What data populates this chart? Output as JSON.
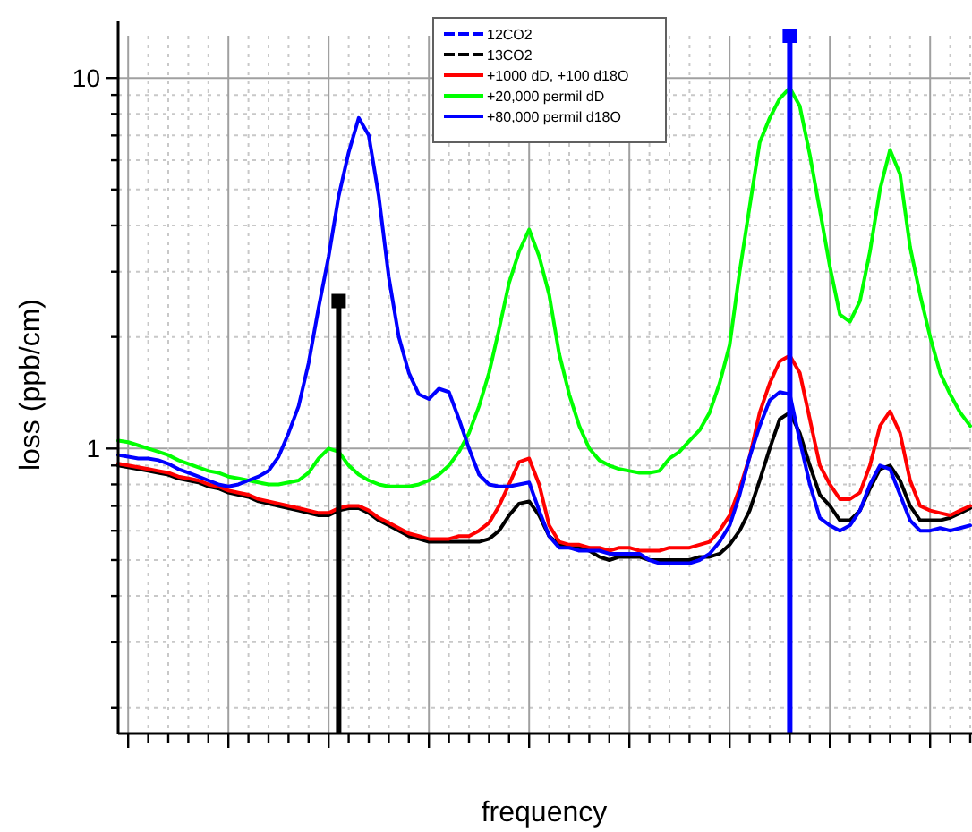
{
  "chart_data": {
    "type": "line",
    "xlabel": "frequency",
    "ylabel": "loss (ppb/cm)",
    "log": "y",
    "grid": true,
    "legend": "top",
    "marker": "none",
    "line_style": "solid",
    "categories": [
      null,
      null,
      null,
      null,
      null,
      null,
      null,
      null,
      null,
      null,
      null,
      null,
      null,
      null,
      null,
      null,
      null,
      null,
      null,
      null,
      null,
      null,
      null,
      null,
      null,
      null,
      null,
      null,
      null,
      null,
      null,
      null,
      null,
      null,
      null,
      null,
      null,
      null,
      null,
      null,
      null,
      null,
      null,
      null,
      null,
      null,
      null,
      null,
      null,
      null,
      null,
      null,
      null,
      null,
      null,
      null,
      null,
      null,
      null,
      null,
      null,
      null,
      null,
      null,
      null,
      null,
      null,
      null,
      null,
      null,
      null,
      null,
      null,
      null,
      null,
      null,
      null,
      null,
      null,
      null,
      null,
      null,
      null,
      null,
      null,
      null
    ],
    "ylim": [
      0.17,
      13
    ],
    "yticks": [
      {
        "value": 0.2,
        "label": null
      },
      {
        "value": 0.3,
        "label": null
      },
      {
        "value": 0.4,
        "label": null
      },
      {
        "value": 0.5,
        "label": null
      },
      {
        "value": 0.6,
        "label": null
      },
      {
        "value": 0.7,
        "label": null
      },
      {
        "value": 0.8,
        "label": null
      },
      {
        "value": 0.9,
        "label": null
      },
      1,
      {
        "value": 2,
        "label": null
      },
      {
        "value": 3,
        "label": null
      },
      {
        "value": 4,
        "label": null
      },
      {
        "value": 5,
        "label": null
      },
      {
        "value": 6,
        "label": null
      },
      {
        "value": 7,
        "label": null
      },
      {
        "value": 8,
        "label": null
      },
      {
        "value": 9,
        "label": null
      },
      10
    ],
    "series": [
      {
        "name": "12CO2",
        "type": "lollipop",
        "color": "#0000ff",
        "marker": "square",
        "values": [
          null,
          null,
          null,
          null,
          null,
          null,
          null,
          null,
          null,
          null,
          null,
          null,
          null,
          null,
          null,
          null,
          null,
          null,
          null,
          null,
          null,
          null,
          null,
          null,
          null,
          null,
          null,
          null,
          null,
          null,
          null,
          null,
          null,
          null,
          null,
          null,
          null,
          null,
          null,
          null,
          null,
          null,
          null,
          null,
          null,
          null,
          null,
          null,
          null,
          null,
          null,
          null,
          null,
          null,
          null,
          null,
          null,
          null,
          null,
          null,
          null,
          null,
          null,
          null,
          null,
          null,
          null,
          13,
          null,
          null,
          null,
          null,
          null,
          null,
          null,
          null,
          null,
          null,
          null,
          null,
          null,
          null,
          null,
          null,
          null,
          null
        ]
      },
      {
        "name": "13CO2",
        "type": "lollipop",
        "color": "#000000",
        "marker": "square",
        "values": [
          null,
          null,
          null,
          null,
          null,
          null,
          null,
          null,
          null,
          null,
          null,
          null,
          null,
          null,
          null,
          null,
          null,
          null,
          null,
          null,
          null,
          null,
          2.5,
          null,
          null,
          null,
          null,
          null,
          null,
          null,
          null,
          null,
          null,
          null,
          null,
          null,
          null,
          null,
          null,
          null,
          null,
          null,
          null,
          null,
          null,
          null,
          null,
          null,
          null,
          null,
          null,
          null,
          null,
          null,
          null,
          null,
          null,
          null,
          null,
          null,
          null,
          null,
          null,
          null,
          null,
          null,
          null,
          null,
          null,
          null,
          null,
          null,
          null,
          null,
          null,
          null,
          null,
          null,
          null,
          null,
          null,
          null,
          null,
          null,
          null,
          null
        ]
      },
      {
        "color": "#000000",
        "values": [
          0.9,
          0.89,
          0.88,
          0.87,
          0.86,
          0.85,
          0.83,
          0.82,
          0.81,
          0.79,
          0.78,
          0.76,
          0.75,
          0.74,
          0.72,
          0.71,
          0.7,
          0.69,
          0.68,
          0.67,
          0.66,
          0.66,
          0.68,
          0.69,
          0.69,
          0.67,
          0.64,
          0.62,
          0.6,
          0.58,
          0.57,
          0.56,
          0.56,
          0.56,
          0.56,
          0.56,
          0.56,
          0.57,
          0.6,
          0.66,
          0.71,
          0.72,
          0.66,
          0.58,
          0.55,
          0.54,
          0.54,
          0.53,
          0.51,
          0.5,
          0.51,
          0.51,
          0.51,
          0.5,
          0.5,
          0.5,
          0.5,
          0.5,
          0.51,
          0.51,
          0.52,
          0.55,
          0.6,
          0.68,
          0.82,
          1.0,
          1.2,
          1.25,
          1.1,
          0.9,
          0.75,
          0.7,
          0.64,
          0.64,
          0.68,
          0.78,
          0.88,
          0.9,
          0.82,
          0.7,
          0.64,
          0.64,
          0.64,
          0.65,
          0.67,
          0.69
        ]
      },
      {
        "name": "+1000 dD, +100 d18O",
        "color": "#ff0000",
        "values": [
          0.91,
          0.9,
          0.89,
          0.88,
          0.87,
          0.86,
          0.84,
          0.83,
          0.82,
          0.8,
          0.79,
          0.77,
          0.76,
          0.75,
          0.73,
          0.72,
          0.71,
          0.7,
          0.69,
          0.68,
          0.67,
          0.67,
          0.69,
          0.7,
          0.7,
          0.68,
          0.65,
          0.63,
          0.61,
          0.59,
          0.58,
          0.57,
          0.57,
          0.57,
          0.58,
          0.58,
          0.6,
          0.63,
          0.7,
          0.8,
          0.92,
          0.94,
          0.8,
          0.62,
          0.56,
          0.55,
          0.55,
          0.54,
          0.54,
          0.53,
          0.54,
          0.54,
          0.53,
          0.53,
          0.53,
          0.54,
          0.54,
          0.54,
          0.55,
          0.56,
          0.6,
          0.66,
          0.78,
          0.95,
          1.25,
          1.5,
          1.72,
          1.78,
          1.6,
          1.2,
          0.9,
          0.8,
          0.73,
          0.73,
          0.76,
          0.9,
          1.15,
          1.26,
          1.1,
          0.82,
          0.7,
          0.68,
          0.67,
          0.66,
          0.68,
          0.7
        ]
      },
      {
        "name": "+20,000 permil dD",
        "color": "#00ff00",
        "values": [
          1.05,
          1.04,
          1.02,
          1.0,
          0.98,
          0.96,
          0.93,
          0.91,
          0.89,
          0.87,
          0.86,
          0.84,
          0.83,
          0.82,
          0.81,
          0.8,
          0.8,
          0.81,
          0.82,
          0.86,
          0.94,
          1.0,
          0.98,
          0.9,
          0.85,
          0.82,
          0.8,
          0.79,
          0.79,
          0.79,
          0.8,
          0.82,
          0.85,
          0.9,
          0.98,
          1.1,
          1.3,
          1.6,
          2.1,
          2.8,
          3.4,
          3.9,
          3.3,
          2.6,
          1.8,
          1.4,
          1.15,
          1.0,
          0.93,
          0.9,
          0.88,
          0.87,
          0.86,
          0.86,
          0.87,
          0.94,
          0.98,
          1.05,
          1.12,
          1.25,
          1.5,
          1.9,
          3.0,
          4.5,
          6.7,
          7.8,
          8.8,
          9.4,
          8.4,
          6.2,
          4.4,
          3.1,
          2.3,
          2.2,
          2.5,
          3.4,
          5.0,
          6.4,
          5.5,
          3.5,
          2.6,
          2.0,
          1.6,
          1.4,
          1.25,
          1.15
        ]
      },
      {
        "name": "+80,000 permil d18O",
        "color": "#0000ff",
        "values": [
          0.96,
          0.95,
          0.94,
          0.94,
          0.93,
          0.91,
          0.88,
          0.86,
          0.84,
          0.82,
          0.8,
          0.79,
          0.8,
          0.82,
          0.84,
          0.87,
          0.95,
          1.1,
          1.3,
          1.7,
          2.4,
          3.3,
          4.8,
          6.3,
          7.8,
          7.0,
          4.8,
          2.9,
          2.0,
          1.6,
          1.4,
          1.36,
          1.45,
          1.42,
          1.2,
          1.0,
          0.85,
          0.8,
          0.79,
          0.79,
          0.8,
          0.81,
          0.68,
          0.58,
          0.54,
          0.54,
          0.53,
          0.53,
          0.53,
          0.52,
          0.52,
          0.52,
          0.52,
          0.5,
          0.49,
          0.49,
          0.49,
          0.49,
          0.5,
          0.52,
          0.56,
          0.62,
          0.75,
          0.95,
          1.15,
          1.35,
          1.42,
          1.4,
          1.05,
          0.8,
          0.65,
          0.62,
          0.6,
          0.62,
          0.68,
          0.8,
          0.9,
          0.88,
          0.75,
          0.64,
          0.6,
          0.6,
          0.61,
          0.6,
          0.61,
          0.62
        ]
      }
    ]
  }
}
